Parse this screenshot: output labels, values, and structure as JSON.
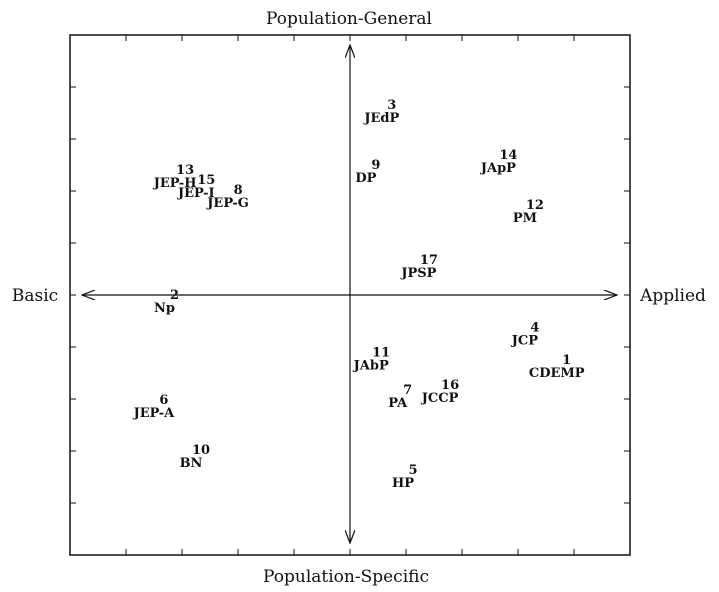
{
  "chart_data": {
    "type": "scatter",
    "title": "",
    "axes": {
      "top": "Population-General",
      "bottom": "Population-Specific",
      "left": "Basic",
      "right": "Applied"
    },
    "xlim": [
      -5,
      5
    ],
    "ylim": [
      -5,
      5
    ],
    "grid": false,
    "points": [
      {
        "id": "1",
        "code": "CDEMP",
        "x": 3.9,
        "y": -1.5
      },
      {
        "id": "2",
        "code": "Np",
        "x": -3.5,
        "y": -0.2
      },
      {
        "id": "3",
        "code": "JEdP",
        "x": 0.6,
        "y": 3.6
      },
      {
        "id": "4",
        "code": "JCP",
        "x": 3.3,
        "y": -0.85
      },
      {
        "id": "5",
        "code": "HP",
        "x": 1.0,
        "y": -3.7
      },
      {
        "id": "6",
        "code": "JEP-A",
        "x": -3.7,
        "y": -2.3
      },
      {
        "id": "7",
        "code": "PA",
        "x": 0.9,
        "y": -2.1
      },
      {
        "id": "8",
        "code": "JEP-G",
        "x": -2.3,
        "y": 1.9
      },
      {
        "id": "9",
        "code": "DP",
        "x": 0.3,
        "y": 2.4
      },
      {
        "id": "10",
        "code": "BN",
        "x": -3.0,
        "y": -3.3
      },
      {
        "id": "11",
        "code": "JAbP",
        "x": 0.4,
        "y": -1.35
      },
      {
        "id": "12",
        "code": "PM",
        "x": 3.3,
        "y": 1.6
      },
      {
        "id": "13",
        "code": "JEP-H",
        "x": -3.3,
        "y": 2.3
      },
      {
        "id": "14",
        "code": "JApP",
        "x": 2.8,
        "y": 2.6
      },
      {
        "id": "15",
        "code": "JEP-I",
        "x": -2.9,
        "y": 2.1
      },
      {
        "id": "16",
        "code": "JCCP",
        "x": 1.7,
        "y": -2.0
      },
      {
        "id": "17",
        "code": "JPSP",
        "x": 1.3,
        "y": 0.5
      }
    ]
  }
}
